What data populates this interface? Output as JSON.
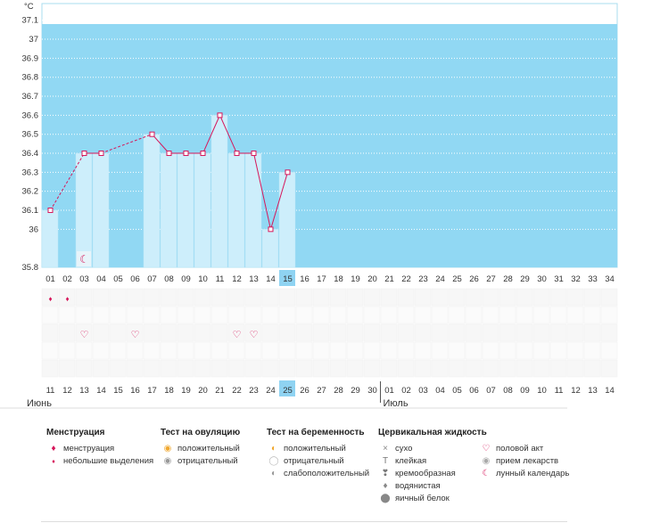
{
  "chart_data": {
    "type": "bar",
    "ylabel": "°C",
    "ylim": [
      35.8,
      37.2
    ],
    "yticks": [
      "35.8",
      "36",
      "36.1",
      "36.2",
      "36.3",
      "36.4",
      "36.5",
      "36.6",
      "36.7",
      "36.8",
      "36.9",
      "37",
      "37.1"
    ],
    "cycle_days": [
      "01",
      "02",
      "03",
      "04",
      "05",
      "06",
      "07",
      "08",
      "09",
      "10",
      "11",
      "12",
      "13",
      "14",
      "15",
      "16",
      "17",
      "18",
      "19",
      "20",
      "21",
      "22",
      "23",
      "24",
      "25",
      "26",
      "27",
      "28",
      "29",
      "30",
      "31",
      "32",
      "33",
      "34"
    ],
    "current_day": "15",
    "temperatures": [
      36.1,
      null,
      36.4,
      36.4,
      null,
      null,
      36.5,
      36.4,
      36.4,
      36.4,
      36.6,
      36.4,
      36.4,
      36.0,
      36.3
    ],
    "dashed_segments": [
      [
        0,
        2
      ],
      [
        3,
        6
      ]
    ],
    "moon_day_index": 2,
    "menstruation_days": [
      0,
      1
    ],
    "intercourse_days": [
      2,
      5,
      11,
      12
    ],
    "dates": [
      "11",
      "12",
      "13",
      "14",
      "15",
      "16",
      "17",
      "18",
      "19",
      "20",
      "21",
      "22",
      "23",
      "24",
      "25",
      "26",
      "27",
      "28",
      "29",
      "30",
      "01",
      "02",
      "03",
      "04",
      "05",
      "06",
      "07",
      "08",
      "09",
      "10",
      "11",
      "12",
      "13",
      "14"
    ],
    "weekend_indices": [
      4,
      5,
      11,
      12,
      18,
      19,
      25,
      26,
      32,
      33
    ],
    "current_date_index": 14,
    "month_start_index": 20,
    "months": [
      "Июнь",
      "Июль"
    ],
    "colors": {
      "background": "#91d8f3",
      "bar": "#cdeefb",
      "line": "#d6165a",
      "today": "#8fd3f2",
      "weekend": "#e0104f"
    }
  },
  "legend": {
    "menstruation": {
      "title": "Менструация",
      "items": [
        "менструация",
        "небольшие выделения"
      ]
    },
    "ovulation": {
      "title": "Тест на овуляцию",
      "items": [
        "положительный",
        "отрицательный"
      ]
    },
    "pregnancy": {
      "title": "Тест на беременность",
      "items": [
        "положительный",
        "отрицательный",
        "слабоположительный"
      ]
    },
    "cervical": {
      "title": "Цервикальная жидкость",
      "items": [
        "сухо",
        "клейкая",
        "кремообразная",
        "водянистая",
        "яичный белок"
      ]
    },
    "other": {
      "items": [
        "половой акт",
        "прием лекарств",
        "лунный календарь"
      ]
    }
  },
  "icons": {
    "drop": "drop-icon",
    "heart": "heart-icon",
    "moon": "moon-icon",
    "circle": "circle-icon",
    "cross": "cross-icon"
  }
}
